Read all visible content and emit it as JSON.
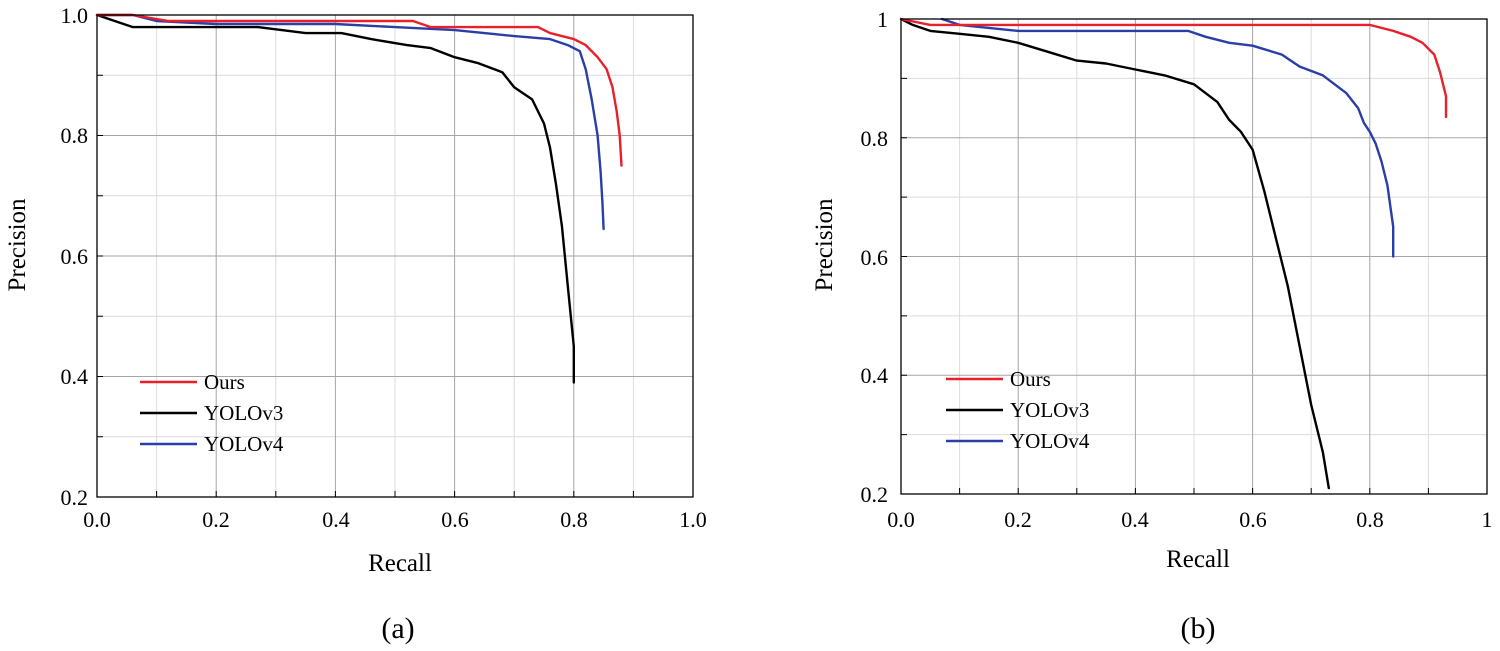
{
  "chart_data": [
    {
      "type": "line",
      "panel_label": "(a)",
      "xlabel": "Recall",
      "ylabel": "Precision",
      "xlim": [
        0,
        1
      ],
      "ylim": [
        0.2,
        1
      ],
      "xticks": [
        0,
        0.2,
        0.4,
        0.6,
        0.8,
        1.0
      ],
      "yticks": [
        0.2,
        0.4,
        0.6,
        0.8,
        1.0
      ],
      "xtick_labels": [
        "0.0",
        "0.2",
        "0.4",
        "0.6",
        "0.8",
        "1.0"
      ],
      "ytick_labels": [
        "0.2",
        "0.4",
        "0.6",
        "0.8",
        "1.0"
      ],
      "grid": true,
      "legend_position": "bottom-left",
      "series": [
        {
          "name": "Ours",
          "color": "#e8202a",
          "points": [
            [
              0,
              1.0
            ],
            [
              0.06,
              1.0
            ],
            [
              0.12,
              0.99
            ],
            [
              0.3,
              0.99
            ],
            [
              0.53,
              0.99
            ],
            [
              0.56,
              0.98
            ],
            [
              0.65,
              0.98
            ],
            [
              0.74,
              0.98
            ],
            [
              0.76,
              0.97
            ],
            [
              0.8,
              0.96
            ],
            [
              0.82,
              0.95
            ],
            [
              0.84,
              0.93
            ],
            [
              0.855,
              0.91
            ],
            [
              0.865,
              0.88
            ],
            [
              0.872,
              0.84
            ],
            [
              0.877,
              0.8
            ],
            [
              0.88,
              0.75
            ]
          ]
        },
        {
          "name": "YOLOv3",
          "color": "#000000",
          "points": [
            [
              0,
              1.0
            ],
            [
              0.06,
              0.98
            ],
            [
              0.27,
              0.98
            ],
            [
              0.35,
              0.97
            ],
            [
              0.41,
              0.97
            ],
            [
              0.46,
              0.96
            ],
            [
              0.52,
              0.95
            ],
            [
              0.56,
              0.945
            ],
            [
              0.6,
              0.93
            ],
            [
              0.64,
              0.92
            ],
            [
              0.68,
              0.905
            ],
            [
              0.7,
              0.88
            ],
            [
              0.73,
              0.86
            ],
            [
              0.75,
              0.82
            ],
            [
              0.76,
              0.78
            ],
            [
              0.77,
              0.72
            ],
            [
              0.78,
              0.65
            ],
            [
              0.79,
              0.55
            ],
            [
              0.8,
              0.45
            ],
            [
              0.8,
              0.39
            ]
          ]
        },
        {
          "name": "YOLOv4",
          "color": "#2b3ea8",
          "points": [
            [
              0,
              1.0
            ],
            [
              0.06,
              1.0
            ],
            [
              0.1,
              0.99
            ],
            [
              0.2,
              0.985
            ],
            [
              0.4,
              0.985
            ],
            [
              0.5,
              0.98
            ],
            [
              0.6,
              0.975
            ],
            [
              0.65,
              0.97
            ],
            [
              0.7,
              0.965
            ],
            [
              0.76,
              0.96
            ],
            [
              0.79,
              0.95
            ],
            [
              0.81,
              0.94
            ],
            [
              0.82,
              0.91
            ],
            [
              0.83,
              0.86
            ],
            [
              0.84,
              0.8
            ],
            [
              0.845,
              0.74
            ],
            [
              0.848,
              0.69
            ],
            [
              0.85,
              0.645
            ]
          ]
        }
      ]
    },
    {
      "type": "line",
      "panel_label": "(b)",
      "xlabel": "Recall",
      "ylabel": "Precision",
      "xlim": [
        0,
        1
      ],
      "ylim": [
        0.2,
        1
      ],
      "xticks": [
        0,
        0.2,
        0.4,
        0.6,
        0.8,
        1
      ],
      "yticks": [
        0.2,
        0.4,
        0.6,
        0.8,
        1
      ],
      "xtick_labels": [
        "0.0",
        "0.2",
        "0.4",
        "0.6",
        "0.8",
        "1"
      ],
      "ytick_labels": [
        "0.2",
        "0.4",
        "0.6",
        "0.8",
        "1"
      ],
      "grid": true,
      "legend_position": "bottom-left",
      "series": [
        {
          "name": "Ours",
          "color": "#e8202a",
          "points": [
            [
              0,
              1.0
            ],
            [
              0.05,
              0.99
            ],
            [
              0.3,
              0.99
            ],
            [
              0.6,
              0.99
            ],
            [
              0.8,
              0.99
            ],
            [
              0.84,
              0.98
            ],
            [
              0.87,
              0.97
            ],
            [
              0.89,
              0.96
            ],
            [
              0.91,
              0.94
            ],
            [
              0.92,
              0.91
            ],
            [
              0.93,
              0.87
            ],
            [
              0.93,
              0.835
            ]
          ]
        },
        {
          "name": "YOLOv3",
          "color": "#000000",
          "points": [
            [
              0,
              1.0
            ],
            [
              0.02,
              0.99
            ],
            [
              0.05,
              0.98
            ],
            [
              0.1,
              0.975
            ],
            [
              0.15,
              0.97
            ],
            [
              0.2,
              0.96
            ],
            [
              0.25,
              0.945
            ],
            [
              0.3,
              0.93
            ],
            [
              0.35,
              0.925
            ],
            [
              0.4,
              0.915
            ],
            [
              0.45,
              0.905
            ],
            [
              0.5,
              0.89
            ],
            [
              0.52,
              0.875
            ],
            [
              0.54,
              0.86
            ],
            [
              0.56,
              0.83
            ],
            [
              0.58,
              0.81
            ],
            [
              0.6,
              0.78
            ],
            [
              0.62,
              0.71
            ],
            [
              0.64,
              0.63
            ],
            [
              0.66,
              0.55
            ],
            [
              0.68,
              0.45
            ],
            [
              0.7,
              0.35
            ],
            [
              0.72,
              0.27
            ],
            [
              0.73,
              0.21
            ]
          ]
        },
        {
          "name": "YOLOv4",
          "color": "#2b3ea8",
          "points": [
            [
              0.07,
              1.0
            ],
            [
              0.1,
              0.99
            ],
            [
              0.2,
              0.98
            ],
            [
              0.35,
              0.98
            ],
            [
              0.45,
              0.98
            ],
            [
              0.49,
              0.98
            ],
            [
              0.52,
              0.97
            ],
            [
              0.56,
              0.96
            ],
            [
              0.6,
              0.955
            ],
            [
              0.65,
              0.94
            ],
            [
              0.68,
              0.92
            ],
            [
              0.72,
              0.905
            ],
            [
              0.76,
              0.875
            ],
            [
              0.78,
              0.85
            ],
            [
              0.79,
              0.825
            ],
            [
              0.8,
              0.81
            ],
            [
              0.81,
              0.79
            ],
            [
              0.82,
              0.76
            ],
            [
              0.83,
              0.72
            ],
            [
              0.84,
              0.65
            ],
            [
              0.84,
              0.6
            ]
          ]
        }
      ]
    }
  ]
}
